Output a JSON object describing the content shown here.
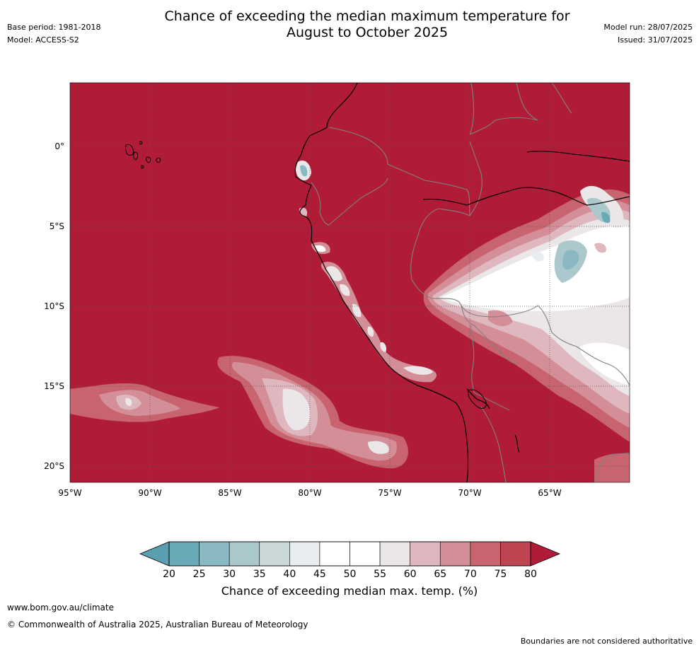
{
  "header": {
    "base_period": "Base period: 1981-2018",
    "model": "Model: ACCESS-S2",
    "title_line1": "Chance of exceeding the median maximum temperature for",
    "title_line2": "August to October 2025",
    "model_run": "Model run: 28/07/2025",
    "issued": "Issued: 31/07/2025"
  },
  "map": {
    "lon_ticks": [
      "95°W",
      "90°W",
      "85°W",
      "80°W",
      "75°W",
      "70°W",
      "65°W"
    ],
    "lat_ticks": [
      "0°",
      "5°S",
      "10°S",
      "15°S",
      "20°S"
    ],
    "colors": {
      "ocean_dominant": "#b01c38",
      "coast": "#000000",
      "borders": "#808080",
      "grid": "#555555"
    }
  },
  "colorbar": {
    "ticks": [
      "20",
      "25",
      "30",
      "35",
      "40",
      "45",
      "50",
      "55",
      "60",
      "65",
      "70",
      "75",
      "80"
    ],
    "colors": [
      "#6aaab7",
      "#8ab9c4",
      "#abc8cc",
      "#cbd8da",
      "#e8eef0",
      "#ffffff",
      "#ffffff",
      "#ebe7e8",
      "#dfb8bf",
      "#d48e98",
      "#c7646f",
      "#bd4552"
    ],
    "low_extend_color": "#5a9fb0",
    "high_extend_color": "#b01c38",
    "label": "Chance of exceeding median max. temp. (%)"
  },
  "footer": {
    "website": "www.bom.gov.au/climate",
    "copyright": "© Commonwealth of Australia 2025, Australian Bureau of Meteorology",
    "disclaimer": "Boundaries are not considered authoritative"
  }
}
